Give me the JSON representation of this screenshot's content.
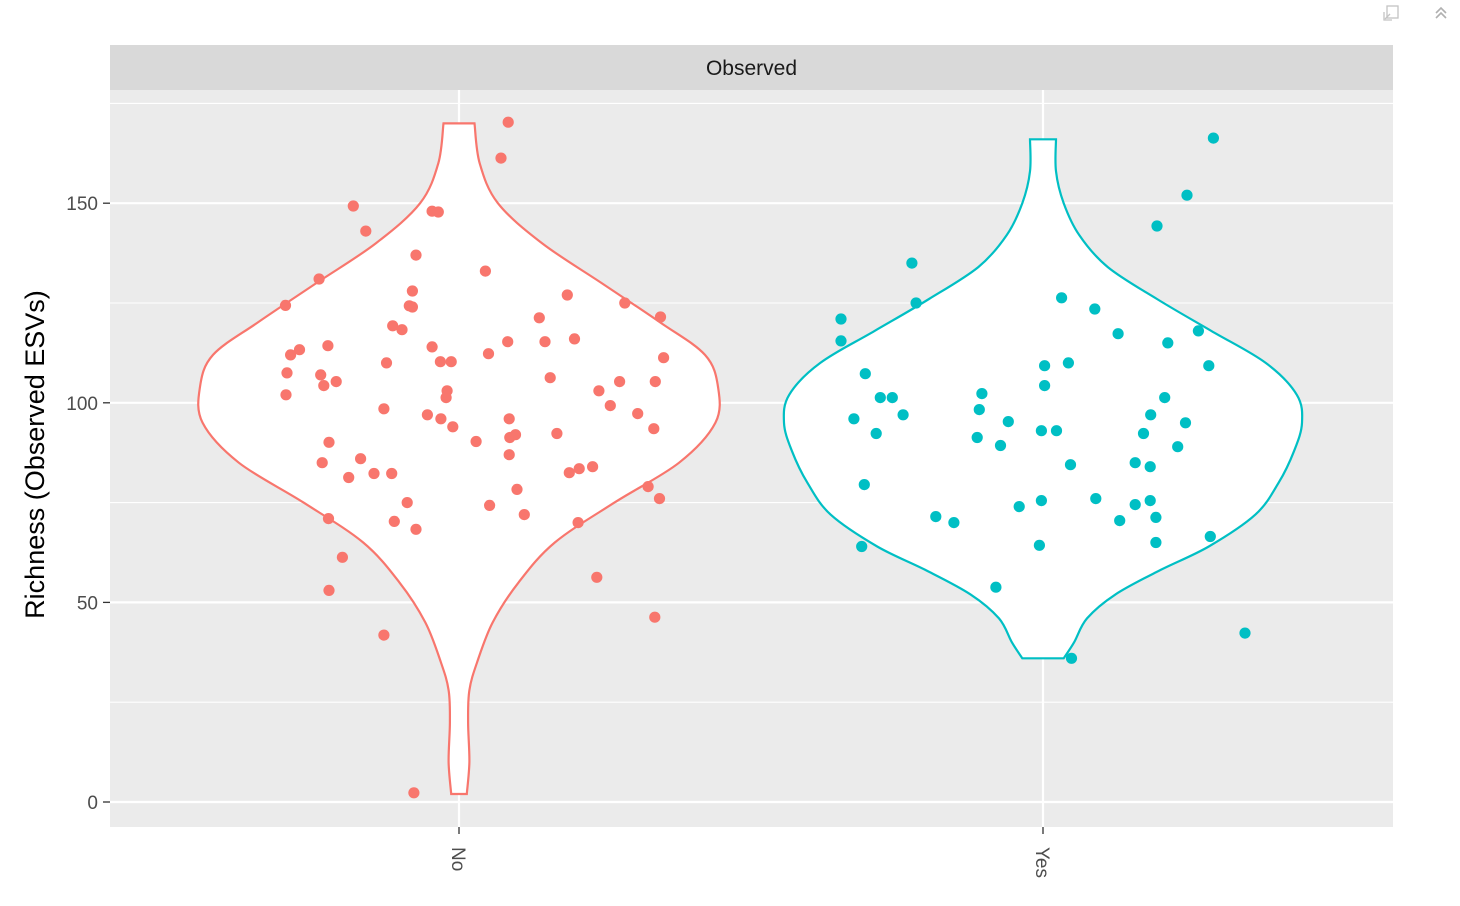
{
  "toolbar": {
    "buttons": [
      {
        "name": "popout-icon",
        "label": ""
      },
      {
        "name": "collapse-up-icon",
        "label": ""
      }
    ]
  },
  "chart_data": {
    "type": "violin",
    "facet_label": "Observed",
    "xlabel": "",
    "ylabel": "Richness (Observed ESVs)",
    "ylim": [
      -6,
      178
    ],
    "yticks": [
      0,
      50,
      100,
      150
    ],
    "ytick_labels": [
      "0",
      "50",
      "100",
      "150"
    ],
    "categories": [
      "No",
      "Yes"
    ],
    "grid": true,
    "colors": {
      "No": "#F8766D",
      "Yes": "#00BFC4",
      "panel_bg": "#EBEBEB",
      "strip_bg": "#D9D9D9"
    },
    "violins": [
      {
        "category": "No",
        "profile": [
          [
            2,
            0.03
          ],
          [
            10,
            0.04
          ],
          [
            20,
            0.035
          ],
          [
            28,
            0.04
          ],
          [
            35,
            0.07
          ],
          [
            45,
            0.13
          ],
          [
            55,
            0.23
          ],
          [
            65,
            0.37
          ],
          [
            75,
            0.6
          ],
          [
            85,
            0.85
          ],
          [
            95,
            0.99
          ],
          [
            104,
            1.0
          ],
          [
            112,
            0.95
          ],
          [
            120,
            0.78
          ],
          [
            130,
            0.55
          ],
          [
            140,
            0.32
          ],
          [
            150,
            0.15
          ],
          [
            160,
            0.08
          ],
          [
            170,
            0.06
          ]
        ]
      },
      {
        "category": "Yes",
        "profile": [
          [
            36,
            0.08
          ],
          [
            40,
            0.12
          ],
          [
            46,
            0.17
          ],
          [
            52,
            0.28
          ],
          [
            58,
            0.45
          ],
          [
            64,
            0.64
          ],
          [
            72,
            0.82
          ],
          [
            80,
            0.91
          ],
          [
            88,
            0.97
          ],
          [
            95,
            1.0
          ],
          [
            102,
            0.98
          ],
          [
            110,
            0.86
          ],
          [
            118,
            0.65
          ],
          [
            126,
            0.44
          ],
          [
            134,
            0.25
          ],
          [
            142,
            0.14
          ],
          [
            150,
            0.08
          ],
          [
            158,
            0.05
          ],
          [
            166,
            0.05
          ]
        ]
      }
    ],
    "points": [
      {
        "category": "No",
        "values": [
          [
            -0.335,
            124.4
          ],
          [
            -0.332,
            107.5
          ],
          [
            -0.334,
            102.0
          ],
          [
            -0.325,
            112.0
          ],
          [
            -0.308,
            113.3
          ],
          [
            -0.27,
            131.0
          ],
          [
            -0.267,
            107.0
          ],
          [
            -0.261,
            104.3
          ],
          [
            -0.253,
            114.3
          ],
          [
            -0.251,
            90.1
          ],
          [
            -0.264,
            85.0
          ],
          [
            -0.252,
            71.0
          ],
          [
            -0.251,
            53.0
          ],
          [
            -0.237,
            105.3
          ],
          [
            -0.225,
            61.3
          ],
          [
            -0.204,
            149.3
          ],
          [
            -0.18,
            143.0
          ],
          [
            -0.19,
            86.0
          ],
          [
            -0.213,
            81.3
          ],
          [
            -0.164,
            82.3
          ],
          [
            -0.145,
            41.8
          ],
          [
            -0.145,
            98.5
          ],
          [
            -0.14,
            110.0
          ],
          [
            -0.13,
            82.3
          ],
          [
            -0.128,
            119.3
          ],
          [
            -0.125,
            70.3
          ],
          [
            -0.11,
            118.3
          ],
          [
            -0.096,
            124.3
          ],
          [
            -0.09,
            124.0
          ],
          [
            -0.09,
            128.0
          ],
          [
            -0.083,
            137.0
          ],
          [
            -0.1,
            75.0
          ],
          [
            -0.083,
            68.3
          ],
          [
            -0.087,
            2.3
          ],
          [
            -0.061,
            97.0
          ],
          [
            -0.052,
            148.0
          ],
          [
            -0.052,
            114.0
          ],
          [
            -0.04,
            147.8
          ],
          [
            -0.036,
            110.3
          ],
          [
            -0.035,
            96.0
          ],
          [
            -0.025,
            101.3
          ],
          [
            -0.023,
            103.0
          ],
          [
            -0.015,
            110.3
          ],
          [
            -0.012,
            94.0
          ],
          [
            0.033,
            90.3
          ],
          [
            0.051,
            133.0
          ],
          [
            0.057,
            112.3
          ],
          [
            0.059,
            74.3
          ],
          [
            0.081,
            161.3
          ],
          [
            0.094,
            115.3
          ],
          [
            0.095,
            170.3
          ],
          [
            0.097,
            87.0
          ],
          [
            0.097,
            96.0
          ],
          [
            0.098,
            91.3
          ],
          [
            0.109,
            92.0
          ],
          [
            0.112,
            78.3
          ],
          [
            0.126,
            72.0
          ],
          [
            0.155,
            121.3
          ],
          [
            0.166,
            115.3
          ],
          [
            0.176,
            106.3
          ],
          [
            0.189,
            92.3
          ],
          [
            0.209,
            127.0
          ],
          [
            0.213,
            82.5
          ],
          [
            0.223,
            116.0
          ],
          [
            0.23,
            70.0
          ],
          [
            0.232,
            83.5
          ],
          [
            0.258,
            84.0
          ],
          [
            0.266,
            56.3
          ],
          [
            0.27,
            103.0
          ],
          [
            0.292,
            99.3
          ],
          [
            0.31,
            105.3
          ],
          [
            0.32,
            125.0
          ],
          [
            0.345,
            97.3
          ],
          [
            0.365,
            79.0
          ],
          [
            0.376,
            93.5
          ],
          [
            0.378,
            46.3
          ],
          [
            0.379,
            105.3
          ],
          [
            0.387,
            76.0
          ],
          [
            0.389,
            121.5
          ],
          [
            0.395,
            111.3
          ]
        ]
      },
      {
        "category": "Yes",
        "values": [
          [
            -0.39,
            121.0
          ],
          [
            -0.39,
            115.5
          ],
          [
            -0.365,
            96.0
          ],
          [
            -0.35,
            64.0
          ],
          [
            -0.345,
            79.5
          ],
          [
            -0.343,
            107.3
          ],
          [
            -0.322,
            92.3
          ],
          [
            -0.314,
            101.3
          ],
          [
            -0.291,
            101.3
          ],
          [
            -0.27,
            97.0
          ],
          [
            -0.253,
            135.0
          ],
          [
            -0.245,
            125.0
          ],
          [
            -0.207,
            71.5
          ],
          [
            -0.172,
            70.0
          ],
          [
            -0.127,
            91.3
          ],
          [
            -0.123,
            98.3
          ],
          [
            -0.118,
            102.3
          ],
          [
            -0.091,
            53.8
          ],
          [
            -0.082,
            89.3
          ],
          [
            -0.067,
            95.3
          ],
          [
            -0.046,
            74.0
          ],
          [
            -0.007,
            64.3
          ],
          [
            -0.003,
            93.0
          ],
          [
            -0.003,
            75.5
          ],
          [
            0.003,
            104.3
          ],
          [
            0.003,
            109.3
          ],
          [
            0.026,
            93.0
          ],
          [
            0.036,
            126.3
          ],
          [
            0.049,
            110.0
          ],
          [
            0.053,
            84.5
          ],
          [
            0.055,
            36.0
          ],
          [
            0.1,
            123.5
          ],
          [
            0.102,
            76.0
          ],
          [
            0.145,
            117.3
          ],
          [
            0.148,
            70.5
          ],
          [
            0.178,
            74.5
          ],
          [
            0.178,
            85.0
          ],
          [
            0.194,
            92.3
          ],
          [
            0.207,
            75.5
          ],
          [
            0.207,
            84.0
          ],
          [
            0.208,
            97.0
          ],
          [
            0.218,
            71.3
          ],
          [
            0.218,
            65.0
          ],
          [
            0.22,
            144.3
          ],
          [
            0.235,
            101.3
          ],
          [
            0.241,
            115.0
          ],
          [
            0.26,
            89.0
          ],
          [
            0.275,
            95.0
          ],
          [
            0.278,
            152.0
          ],
          [
            0.3,
            118.0
          ],
          [
            0.32,
            109.3
          ],
          [
            0.323,
            66.5
          ],
          [
            0.329,
            166.3
          ],
          [
            0.39,
            42.3
          ]
        ]
      }
    ]
  }
}
